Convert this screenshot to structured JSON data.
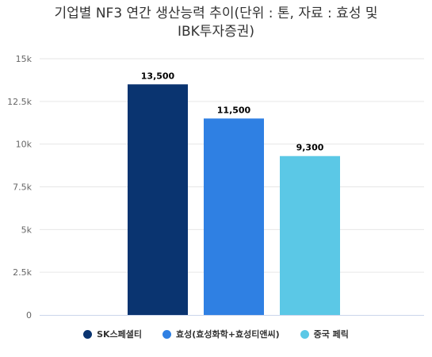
{
  "title_lines": [
    "기업별 NF3 연간 생산능력 추이(단위 : 톤, 자료 : 효성 및",
    "IBK투자증권)"
  ],
  "chart_data": {
    "type": "bar",
    "title": "기업별 NF3 연간 생산능력 추이(단위 : 톤, 자료 : 효성 및 IBK투자증권)",
    "categories": [
      "SK스페셜티",
      "효성(효성화학+효성티앤씨)",
      "중국 페릭"
    ],
    "values": [
      13500,
      11500,
      9300
    ],
    "value_labels": [
      "13,500",
      "11,500",
      "9,300"
    ],
    "colors": [
      "#0a3470",
      "#2f80e3",
      "#5bc8e6"
    ],
    "ylim": [
      0,
      15000
    ],
    "yticks": [
      0,
      2500,
      5000,
      7500,
      10000,
      12500,
      15000
    ],
    "ytick_labels": [
      "0",
      "2.5k",
      "5k",
      "7.5k",
      "10k",
      "12.5k",
      "15k"
    ],
    "grid": true,
    "legend": "bottom",
    "xlabel": "",
    "ylabel": ""
  },
  "legend": [
    {
      "label": "SK스페셜티",
      "color": "#0a3470"
    },
    {
      "label": "효성(효성화학+효성티앤씨)",
      "color": "#2f80e3"
    },
    {
      "label": "중국 페릭",
      "color": "#5bc8e6"
    }
  ]
}
